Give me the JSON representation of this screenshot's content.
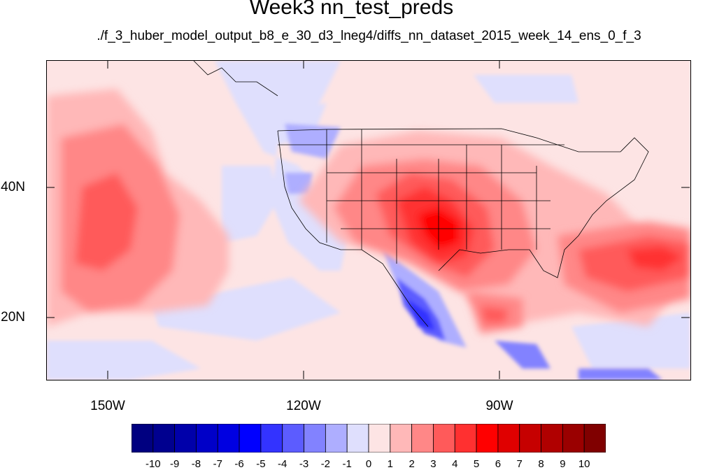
{
  "title": "Week3 nn_test_preds",
  "subtitle": "./f_3_huber_model_output_b8_e_30_d3_lneg4/diffs_nn_dataset_2015_week_14_ens_0_f_3",
  "map": {
    "lon_range": [
      -160,
      -60
    ],
    "lat_range": [
      11,
      59
    ],
    "y_axis": [
      {
        "label": "40N",
        "lat": 40
      },
      {
        "label": "20N",
        "lat": 20
      }
    ],
    "x_axis": [
      {
        "label": "150W",
        "lon": -150
      },
      {
        "label": "120W",
        "lon": -120
      },
      {
        "label": "90W",
        "lon": -90
      }
    ]
  },
  "colorbar": {
    "colors": [
      "#000080",
      "#00008f",
      "#0000aa",
      "#0000c8",
      "#0000e1",
      "#0000ff",
      "#3333ff",
      "#5c5cff",
      "#8282ff",
      "#aeaeff",
      "#dfdffd",
      "#fde4e4",
      "#ffb8b8",
      "#ff8787",
      "#ff5a5a",
      "#ff3030",
      "#ff0000",
      "#e00000",
      "#c60000",
      "#b00000",
      "#9a0000",
      "#800000"
    ],
    "labels": [
      "-10",
      "-9",
      "-8",
      "-7",
      "-6",
      "-5",
      "-4",
      "-3",
      "-2",
      "-1",
      "0",
      "1",
      "2",
      "3",
      "4",
      "5",
      "6",
      "7",
      "8",
      "9",
      "10"
    ]
  }
}
